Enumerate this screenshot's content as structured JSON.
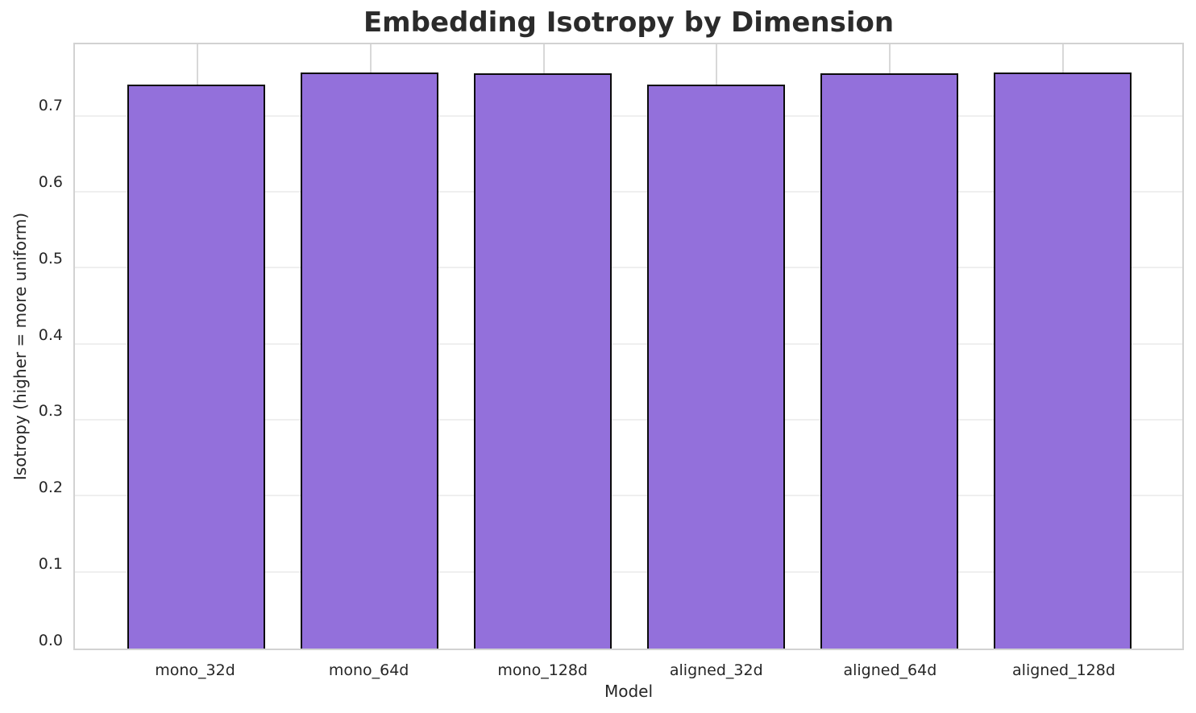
{
  "chart_data": {
    "type": "bar",
    "title": "Embedding Isotropy by Dimension",
    "xlabel": "Model",
    "ylabel": "Isotropy (higher = more uniform)",
    "categories": [
      "mono_32d",
      "mono_64d",
      "mono_128d",
      "aligned_32d",
      "aligned_64d",
      "aligned_128d"
    ],
    "values": [
      0.742,
      0.758,
      0.757,
      0.742,
      0.757,
      0.758
    ],
    "ylim": [
      0.0,
      0.795
    ],
    "yticks": [
      0.0,
      0.1,
      0.2,
      0.3,
      0.4,
      0.5,
      0.6,
      0.7
    ],
    "ytick_labels": [
      "0.0",
      "0.1",
      "0.2",
      "0.3",
      "0.4",
      "0.5",
      "0.6",
      "0.7"
    ],
    "grid": true,
    "legend_position": "none",
    "colors": {
      "bar_fill": "#9370DB",
      "bar_edge": "#0b0b0b",
      "grid_vertical": "#d8d8d8",
      "grid_horizontal": "#efefef",
      "spine": "#d2d2d2",
      "text": "#262626",
      "background": "#ffffff"
    }
  }
}
